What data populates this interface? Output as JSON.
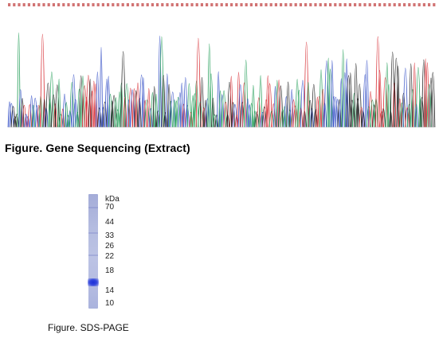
{
  "sequencing": {
    "caption": "Figure. Gene Sequencing (Extract)",
    "trace_colors": {
      "A": "#2ca25f",
      "C": "#3b55c8",
      "G": "#222222",
      "T": "#d8343a"
    },
    "base_call_color": "#c24444"
  },
  "sds_page": {
    "caption": "Figure. SDS-PAGE",
    "unit_label": "kDa",
    "markers": [
      "70",
      "44",
      "33",
      "26",
      "22",
      "18",
      "14",
      "10"
    ],
    "main_band_color": "#1b2fd6"
  }
}
